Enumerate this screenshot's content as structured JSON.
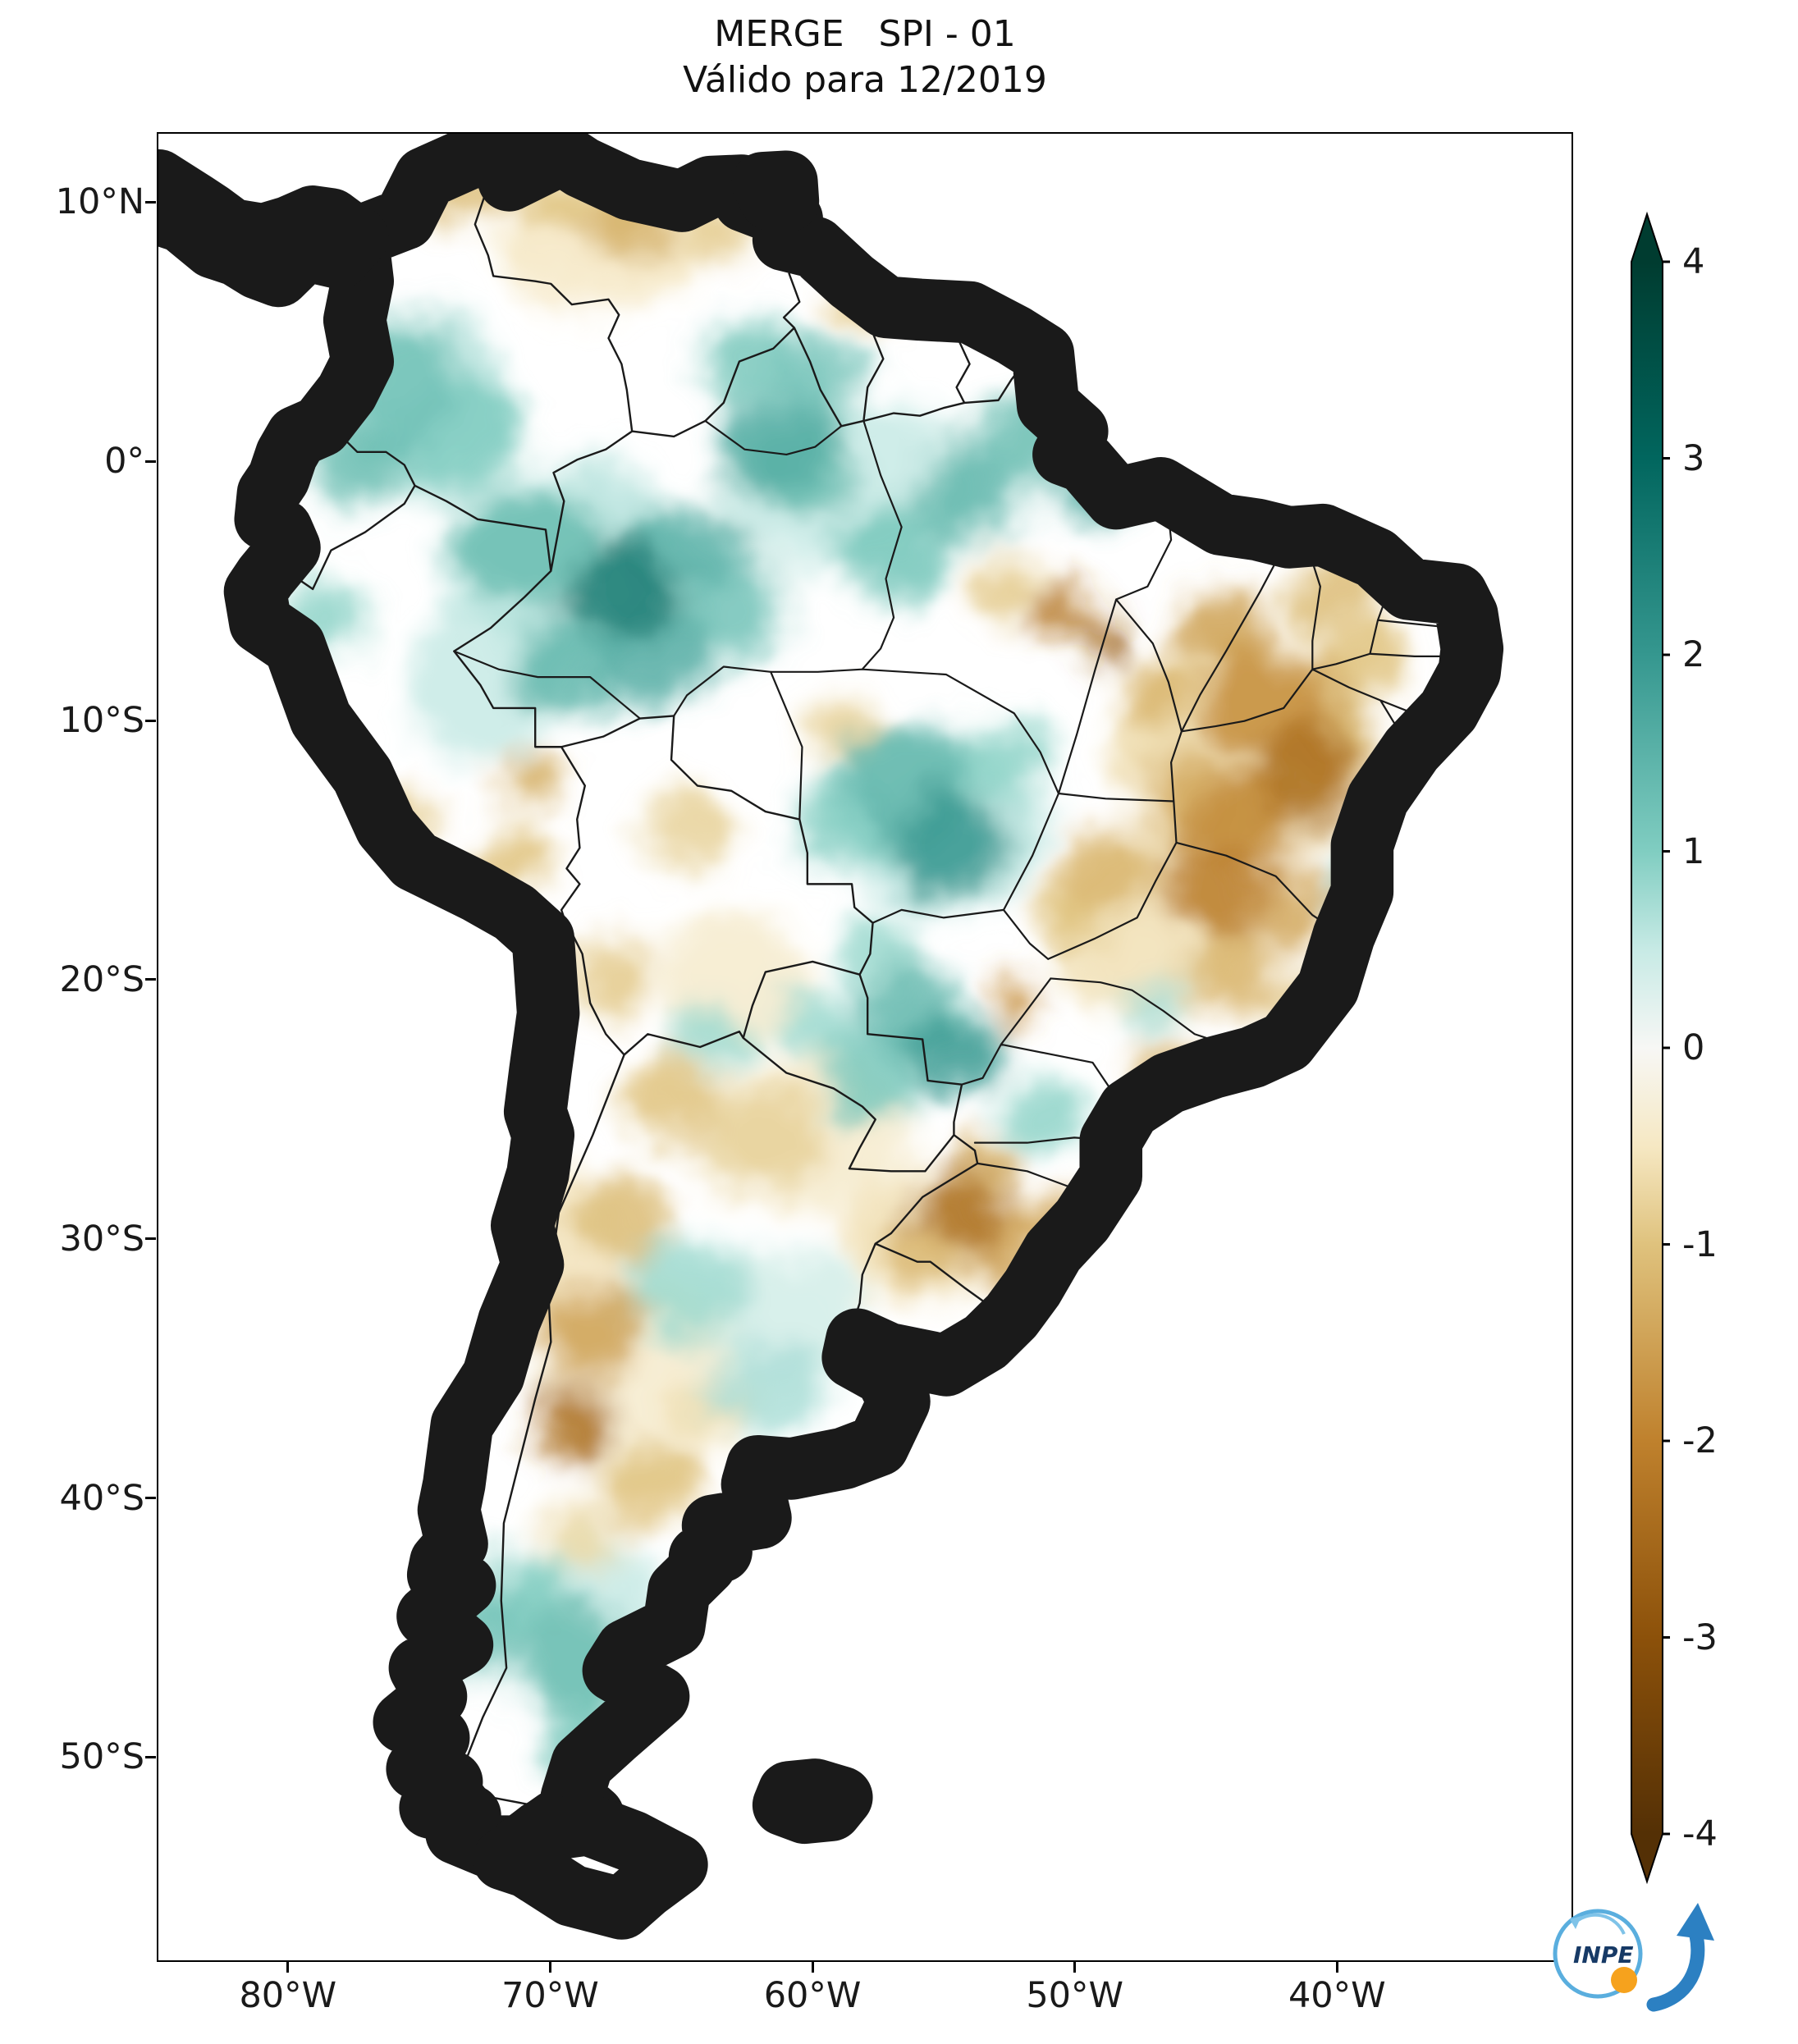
{
  "logo": {
    "text": "INPE"
  },
  "chart_data": {
    "type": "heatmap",
    "title": "MERGE   SPI - 01",
    "subtitle": "Válido para 12/2019",
    "region": "South America",
    "extent": {
      "lon_min": -85,
      "lon_max": -31,
      "lat_min": -57.9,
      "lat_max": 12.7
    },
    "x_ticks": [
      {
        "label": "80°W",
        "lon": -80
      },
      {
        "label": "70°W",
        "lon": -70
      },
      {
        "label": "60°W",
        "lon": -60
      },
      {
        "label": "50°W",
        "lon": -50
      },
      {
        "label": "40°W",
        "lon": -40
      }
    ],
    "y_ticks": [
      {
        "label": "10°N",
        "lat": 10
      },
      {
        "label": "0°",
        "lat": 0
      },
      {
        "label": "10°S",
        "lat": -10
      },
      {
        "label": "20°S",
        "lat": -20
      },
      {
        "label": "30°S",
        "lat": -30
      },
      {
        "label": "40°S",
        "lat": -40
      },
      {
        "label": "50°S",
        "lat": -50
      }
    ],
    "colorbar": {
      "range": [
        -4,
        4
      ],
      "extend": "both",
      "colormap": "BrBG",
      "ticks": [
        {
          "label": "4",
          "v": 4
        },
        {
          "label": "3",
          "v": 3
        },
        {
          "label": "2",
          "v": 2
        },
        {
          "label": "1",
          "v": 1
        },
        {
          "label": "0",
          "v": 0
        },
        {
          "label": "-1",
          "v": -1
        },
        {
          "label": "-2",
          "v": -2
        },
        {
          "label": "-3",
          "v": -3
        },
        {
          "label": "-4",
          "v": -4
        }
      ],
      "stops": [
        {
          "v": -4,
          "c": "#543005"
        },
        {
          "v": -3,
          "c": "#8c510a"
        },
        {
          "v": -2,
          "c": "#bf812d"
        },
        {
          "v": -1,
          "c": "#dfc27d"
        },
        {
          "v": -0.5,
          "c": "#f6e8c3"
        },
        {
          "v": 0,
          "c": "#f7f7f5"
        },
        {
          "v": 0.5,
          "c": "#c7eae5"
        },
        {
          "v": 1,
          "c": "#80cdc1"
        },
        {
          "v": 2,
          "c": "#35978f"
        },
        {
          "v": 3,
          "c": "#01665e"
        },
        {
          "v": 4,
          "c": "#003c30"
        }
      ]
    },
    "anomalies_format": [
      "lon_deg",
      "lat_deg",
      "rx_deg",
      "ry_deg",
      "spi"
    ],
    "anomalies": [
      [
        -69.0,
        -4.0,
        5.0,
        4.0,
        0.6
      ],
      [
        -58.5,
        -1.0,
        5.0,
        3.5,
        0.5
      ],
      [
        -55.0,
        -14.0,
        4.0,
        3.5,
        0.6
      ],
      [
        -43.5,
        -11.0,
        5.0,
        4.5,
        -0.7
      ],
      [
        -47.0,
        -18.0,
        4.0,
        3.5,
        -0.6
      ],
      [
        -66.5,
        -35.5,
        4.0,
        4.0,
        -0.4
      ],
      [
        -72.5,
        -8.5,
        3.0,
        3.0,
        0.5
      ],
      [
        -60.5,
        -26.0,
        4.0,
        3.0,
        -0.4
      ],
      [
        -68.5,
        -45.0,
        3.0,
        4.0,
        0.5
      ],
      [
        -74.5,
        2.0,
        3.0,
        3.5,
        0.6
      ],
      [
        -68.0,
        8.5,
        4.0,
        2.5,
        -0.5
      ],
      [
        -63.0,
        -20.0,
        3.0,
        2.5,
        -0.4
      ],
      [
        -70.0,
        -30.0,
        2.5,
        3.0,
        -0.5
      ],
      [
        -56.0,
        -30.0,
        3.0,
        2.5,
        -0.6
      ],
      [
        -61.0,
        -33.0,
        3.0,
        2.5,
        0.4
      ],
      [
        -75.8,
        3.2,
        2.2,
        2.8,
        1.2
      ],
      [
        -77.5,
        0.0,
        1.6,
        1.8,
        1.3
      ],
      [
        -73.5,
        1.0,
        2.5,
        2.0,
        1.0
      ],
      [
        -70.8,
        -3.2,
        2.8,
        2.2,
        1.3
      ],
      [
        -67.3,
        -5.0,
        2.2,
        1.8,
        2.6
      ],
      [
        -65.0,
        -3.3,
        2.2,
        1.8,
        1.5
      ],
      [
        -69.3,
        -7.8,
        2.0,
        1.6,
        1.4
      ],
      [
        -66.0,
        -7.5,
        2.2,
        1.8,
        1.6
      ],
      [
        -63.0,
        -5.8,
        2.0,
        2.0,
        1.2
      ],
      [
        -61.5,
        0.8,
        2.2,
        1.8,
        1.6
      ],
      [
        -59.8,
        3.2,
        1.8,
        1.5,
        1.2
      ],
      [
        -57.0,
        -3.5,
        2.2,
        1.8,
        1.1
      ],
      [
        -54.0,
        -1.2,
        2.0,
        1.8,
        1.4
      ],
      [
        -51.8,
        0.8,
        1.6,
        1.6,
        1.3
      ],
      [
        -49.3,
        -1.3,
        1.4,
        1.2,
        1.6
      ],
      [
        -56.3,
        -12.3,
        2.6,
        2.2,
        1.4
      ],
      [
        -54.8,
        -14.8,
        2.2,
        2.0,
        2.0
      ],
      [
        -58.8,
        -14.0,
        1.8,
        1.8,
        1.0
      ],
      [
        -52.8,
        -11.5,
        1.8,
        1.6,
        0.9
      ],
      [
        -56.2,
        -21.3,
        2.0,
        1.8,
        1.4
      ],
      [
        -54.6,
        -22.8,
        1.8,
        1.6,
        1.9
      ],
      [
        -57.8,
        -23.8,
        1.8,
        1.6,
        1.1
      ],
      [
        -59.8,
        -21.8,
        1.6,
        1.4,
        0.8
      ],
      [
        -62.5,
        4.0,
        1.8,
        1.5,
        1.1
      ],
      [
        -78.6,
        -5.8,
        1.4,
        1.6,
        0.9
      ],
      [
        -65.0,
        -31.8,
        2.4,
        2.0,
        0.8
      ],
      [
        -61.5,
        -35.8,
        2.4,
        1.8,
        0.7
      ],
      [
        -69.2,
        -46.3,
        2.2,
        2.2,
        1.3
      ],
      [
        -71.2,
        -43.8,
        1.6,
        1.6,
        1.0
      ],
      [
        -68.3,
        -49.8,
        1.8,
        1.6,
        1.1
      ],
      [
        -72.6,
        -45.3,
        1.2,
        2.0,
        1.2
      ],
      [
        -51.2,
        -25.3,
        1.6,
        1.4,
        0.9
      ],
      [
        -63.8,
        -22.3,
        1.4,
        1.2,
        0.8
      ],
      [
        -39.2,
        -16.0,
        1.0,
        1.2,
        0.9
      ],
      [
        -57.5,
        -19.0,
        1.5,
        1.3,
        0.8
      ],
      [
        -60.3,
        -0.5,
        1.8,
        1.5,
        1.3
      ],
      [
        -47.0,
        -21.0,
        1.2,
        1.0,
        0.7
      ],
      [
        -42.6,
        -9.3,
        2.6,
        2.2,
        -1.8
      ],
      [
        -41.2,
        -12.2,
        2.0,
        2.0,
        -2.4
      ],
      [
        -43.6,
        -13.8,
        2.0,
        1.8,
        -1.9
      ],
      [
        -44.6,
        -16.6,
        2.0,
        2.0,
        -2.1
      ],
      [
        -40.2,
        -10.8,
        1.8,
        1.6,
        -1.3
      ],
      [
        -39.0,
        -7.8,
        1.8,
        1.4,
        -1.0
      ],
      [
        -40.2,
        -5.2,
        1.6,
        1.4,
        -1.1
      ],
      [
        -44.2,
        -6.3,
        1.8,
        1.5,
        -1.5
      ],
      [
        -46.8,
        -8.8,
        1.3,
        1.3,
        -1.2
      ],
      [
        -48.8,
        -7.0,
        0.8,
        0.8,
        -2.8
      ],
      [
        -45.6,
        -12.8,
        1.6,
        1.6,
        -1.4
      ],
      [
        -41.6,
        -17.3,
        1.6,
        1.6,
        -1.4
      ],
      [
        -44.0,
        -19.8,
        1.8,
        1.5,
        -1.2
      ],
      [
        -48.6,
        -15.8,
        1.8,
        1.6,
        -1.2
      ],
      [
        -50.2,
        -17.5,
        1.4,
        1.3,
        -1.0
      ],
      [
        -52.2,
        -20.9,
        0.9,
        0.9,
        -1.8
      ],
      [
        -50.4,
        -5.9,
        1.1,
        1.0,
        -2.2
      ],
      [
        -52.6,
        -4.9,
        1.4,
        1.2,
        -0.9
      ],
      [
        -54.2,
        -28.9,
        1.8,
        1.5,
        -2.4
      ],
      [
        -52.6,
        -30.3,
        1.5,
        1.3,
        -1.5
      ],
      [
        -55.8,
        -30.6,
        1.4,
        1.2,
        -1.2
      ],
      [
        -53.4,
        -27.2,
        1.3,
        1.1,
        -1.3
      ],
      [
        -50.9,
        -29.5,
        1.2,
        1.0,
        -1.4
      ],
      [
        -68.6,
        -33.6,
        1.8,
        1.8,
        -1.5
      ],
      [
        -69.2,
        -37.2,
        1.3,
        1.5,
        -2.4
      ],
      [
        -67.2,
        -29.2,
        1.8,
        1.8,
        -1.1
      ],
      [
        -65.4,
        -24.6,
        1.8,
        1.5,
        -1.0
      ],
      [
        -61.8,
        -26.2,
        2.4,
        2.0,
        -0.8
      ],
      [
        -66.2,
        -39.5,
        1.8,
        1.5,
        -1.0
      ],
      [
        -67.8,
        -19.8,
        1.5,
        1.6,
        -0.9
      ],
      [
        -64.6,
        -14.2,
        1.8,
        1.5,
        -0.8
      ],
      [
        -71.6,
        -15.6,
        1.4,
        1.2,
        -1.0
      ],
      [
        -75.8,
        -13.6,
        1.4,
        1.1,
        -0.9
      ],
      [
        -70.9,
        -12.4,
        1.3,
        1.1,
        -1.3
      ],
      [
        -67.2,
        9.2,
        1.8,
        1.3,
        -1.3
      ],
      [
        -69.8,
        10.2,
        1.4,
        1.0,
        -1.0
      ],
      [
        -73.6,
        10.2,
        1.4,
        1.1,
        -1.1
      ],
      [
        -71.9,
        11.3,
        1.2,
        0.9,
        -1.1
      ],
      [
        -63.6,
        8.8,
        1.4,
        1.1,
        -0.9
      ],
      [
        -58.2,
        6.2,
        1.2,
        1.0,
        -0.9
      ],
      [
        -46.6,
        -23.4,
        1.2,
        1.0,
        -1.2
      ],
      [
        -41.4,
        -20.8,
        1.0,
        1.0,
        -0.9
      ],
      [
        -70.7,
        -31.2,
        0.9,
        1.2,
        -0.9
      ],
      [
        -58.6,
        -10.4,
        1.5,
        1.3,
        -0.8
      ],
      [
        -68.9,
        -41.5,
        1.5,
        1.3,
        -0.7
      ],
      [
        -64.0,
        -36.5,
        1.5,
        1.3,
        -0.6
      ]
    ]
  }
}
